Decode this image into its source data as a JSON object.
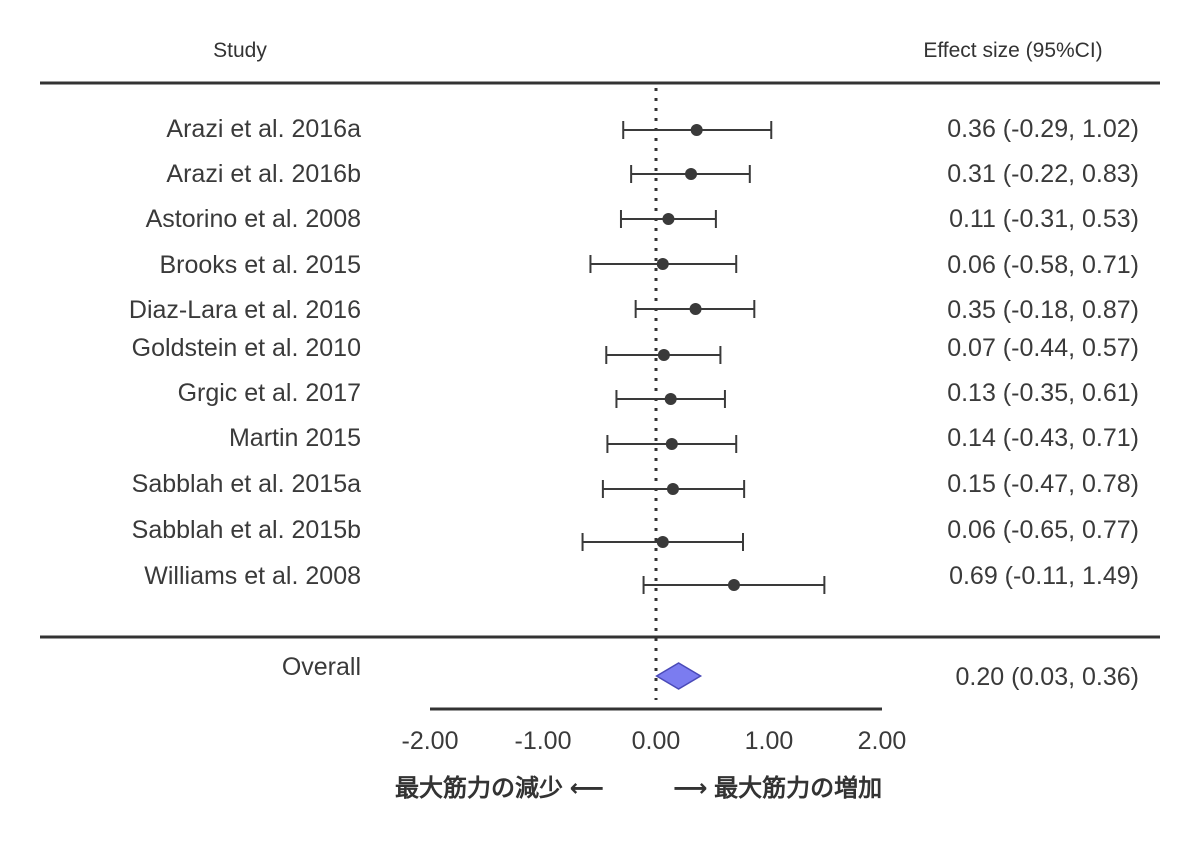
{
  "header": {
    "study_label": "Study",
    "effect_label": "Effect size (95%CI)"
  },
  "chart_data": {
    "type": "forest",
    "x_ticks": [
      "-2.00",
      "-1.00",
      "0.00",
      "1.00",
      "2.00"
    ],
    "xlim": [
      -2,
      2
    ],
    "reference_line": 0,
    "studies": [
      {
        "name": "Arazi et al. 2016a",
        "es": 0.36,
        "lo": -0.29,
        "hi": 1.02,
        "label": "0.36 (-0.29, 1.02)"
      },
      {
        "name": "Arazi et al. 2016b",
        "es": 0.31,
        "lo": -0.22,
        "hi": 0.83,
        "label": "0.31 (-0.22, 0.83)"
      },
      {
        "name": "Astorino et al. 2008",
        "es": 0.11,
        "lo": -0.31,
        "hi": 0.53,
        "label": "0.11 (-0.31, 0.53)"
      },
      {
        "name": "Brooks et al. 2015",
        "es": 0.06,
        "lo": -0.58,
        "hi": 0.71,
        "label": "0.06 (-0.58, 0.71)"
      },
      {
        "name": "Diaz-Lara et al. 2016",
        "es": 0.35,
        "lo": -0.18,
        "hi": 0.87,
        "label": "0.35 (-0.18, 0.87)"
      },
      {
        "name": "Goldstein et al. 2010",
        "es": 0.07,
        "lo": -0.44,
        "hi": 0.57,
        "label": "0.07 (-0.44, 0.57)"
      },
      {
        "name": "Grgic et al. 2017",
        "es": 0.13,
        "lo": -0.35,
        "hi": 0.61,
        "label": "0.13 (-0.35, 0.61)"
      },
      {
        "name": "Martin 2015",
        "es": 0.14,
        "lo": -0.43,
        "hi": 0.71,
        "label": "0.14 (-0.43, 0.71)"
      },
      {
        "name": "Sabblah et al. 2015a",
        "es": 0.15,
        "lo": -0.47,
        "hi": 0.78,
        "label": "0.15 (-0.47, 0.78)"
      },
      {
        "name": "Sabblah et al. 2015b",
        "es": 0.06,
        "lo": -0.65,
        "hi": 0.77,
        "label": "0.06 (-0.65, 0.77)"
      },
      {
        "name": "Williams et al. 2008",
        "es": 0.69,
        "lo": -0.11,
        "hi": 1.49,
        "label": "0.69 (-0.11, 1.49)"
      }
    ],
    "overall": {
      "name": "Overall",
      "es": 0.2,
      "lo": 0.03,
      "hi": 0.36,
      "label": "0.20 (0.03, 0.36)"
    },
    "direction_left": "最大筋力の減少 ⟵",
    "direction_right": "⟶ 最大筋力の増加",
    "colors": {
      "marker": "#3a3a3a",
      "diamond_fill": "#7b7cf0",
      "diamond_stroke": "#4a4ab8"
    }
  }
}
